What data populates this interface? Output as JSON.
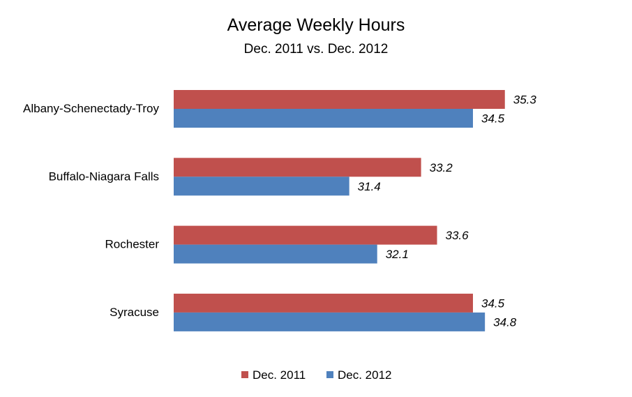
{
  "chart_data": {
    "type": "bar",
    "orientation": "horizontal",
    "title": "Average Weekly Hours",
    "subtitle": "Dec. 2011 vs. Dec. 2012",
    "categories": [
      "Albany-Schenectady-Troy",
      "Buffalo-Niagara Falls",
      "Rochester",
      "Syracuse"
    ],
    "series": [
      {
        "name": "Dec. 2011",
        "color": "#C0504D",
        "values": [
          35.3,
          33.2,
          33.6,
          34.5
        ],
        "labels": [
          "35.3",
          "33.2",
          "33.6",
          "34.5"
        ]
      },
      {
        "name": "Dec. 2012",
        "color": "#4F81BD",
        "values": [
          34.5,
          31.4,
          32.1,
          34.8
        ],
        "labels": [
          "34.5",
          "31.4",
          "32.1",
          "34.8"
        ]
      }
    ],
    "xlim": [
      27.0,
      36.3
    ],
    "data_labels": true,
    "data_label_style": "italic",
    "grid": false,
    "legend_position": "bottom"
  }
}
